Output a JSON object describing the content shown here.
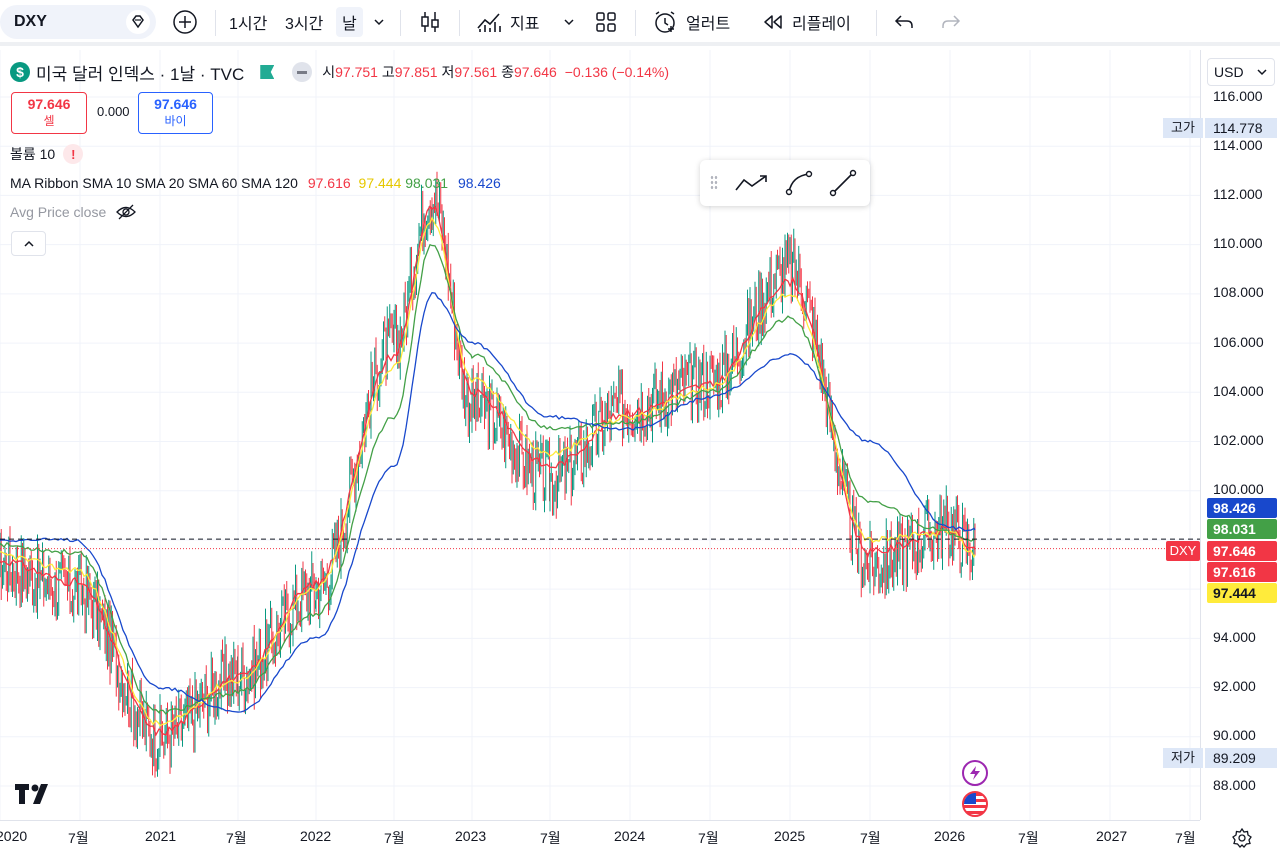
{
  "toolbar": {
    "symbol": "DXY",
    "intervals": [
      "1시간",
      "3시간",
      "날"
    ],
    "indicators_label": "지표",
    "alert_label": "얼러트",
    "replay_label": "리플레이"
  },
  "legend": {
    "title": "미국 달러 인덱스 · 1날 · TVC",
    "open_label": "시",
    "open": "97.751",
    "high_label": "고",
    "high": "97.851",
    "low_label": "저",
    "low": "97.561",
    "close_label": "종",
    "close": "97.646",
    "change": "−0.136 (−0.14%)",
    "sell_price": "97.646",
    "sell_label": "셀",
    "spread": "0.000",
    "buy_price": "97.646",
    "buy_label": "바이",
    "volume_label": "볼륨 10",
    "ma_label": "MA Ribbon SMA 10 SMA 20 SMA 60 SMA 120",
    "ma_values": [
      "97.616",
      "97.444",
      "98.031",
      "98.426"
    ],
    "avg_price_label": "Avg Price close"
  },
  "price_axis": {
    "currency": "USD",
    "ticks": [
      "116.000",
      "114.000",
      "112.000",
      "110.000",
      "108.000",
      "106.000",
      "104.000",
      "102.000",
      "100.000",
      "94.000",
      "92.000",
      "90.000",
      "88.000"
    ],
    "high_label": "고가",
    "high_value": "114.778",
    "low_label": "저가",
    "low_value": "89.209",
    "labels": [
      {
        "text": "98.426",
        "color": "#1848cc"
      },
      {
        "text": "98.031",
        "color": "#43a047"
      },
      {
        "text": "97.646",
        "color": "#f23645"
      },
      {
        "text": "97.616",
        "color": "#f23645"
      },
      {
        "text": "97.444",
        "color": "#ffeb3b"
      }
    ],
    "symbol_tag": "DXY"
  },
  "time_axis": {
    "ticks": [
      "2020",
      "7월",
      "2021",
      "7월",
      "2022",
      "7월",
      "2023",
      "7월",
      "2024",
      "7월",
      "2025",
      "7월",
      "2026",
      "7월",
      "2027",
      "7월"
    ]
  },
  "chart_data": {
    "type": "line",
    "title": "미국 달러 인덱스 · 1날 · TVC",
    "x": [
      "2020-01",
      "2020-07",
      "2021-01",
      "2021-07",
      "2022-01",
      "2022-07",
      "2022-10",
      "2023-01",
      "2023-07",
      "2024-01",
      "2024-07",
      "2025-01",
      "2025-07",
      "2026-01",
      "2026-03"
    ],
    "series": [
      {
        "name": "Close",
        "color": "#26a69a",
        "values": [
          97.0,
          96.0,
          90.0,
          92.5,
          96.0,
          106.0,
          112.0,
          103.5,
          100.5,
          103.5,
          104.5,
          109.0,
          97.0,
          98.5,
          97.6
        ]
      },
      {
        "name": "SMA 10",
        "color": "#f23645",
        "values": [
          97.2,
          96.3,
          90.2,
          92.4,
          96.2,
          105.5,
          111.5,
          104.0,
          101.0,
          103.2,
          104.3,
          108.5,
          97.5,
          98.4,
          97.6
        ]
      },
      {
        "name": "SMA 20",
        "color": "#ffeb3b",
        "values": [
          97.4,
          96.8,
          90.5,
          92.3,
          96.0,
          105.0,
          111.0,
          104.5,
          101.5,
          103.0,
          104.2,
          108.0,
          98.0,
          98.3,
          97.4
        ]
      },
      {
        "name": "SMA 60",
        "color": "#43a047",
        "values": [
          97.8,
          97.5,
          91.0,
          91.8,
          95.0,
          103.0,
          110.0,
          105.5,
          102.5,
          102.8,
          104.0,
          107.0,
          99.5,
          98.3,
          98.0
        ]
      },
      {
        "name": "SMA 120",
        "color": "#1848cc",
        "values": [
          98.0,
          98.0,
          92.0,
          91.0,
          94.0,
          101.0,
          108.0,
          106.0,
          103.0,
          102.5,
          103.8,
          105.5,
          102.0,
          98.5,
          98.4
        ]
      }
    ],
    "ylim": [
      87,
      117
    ],
    "last_price": 97.646,
    "high": 114.778,
    "low": 89.209
  }
}
